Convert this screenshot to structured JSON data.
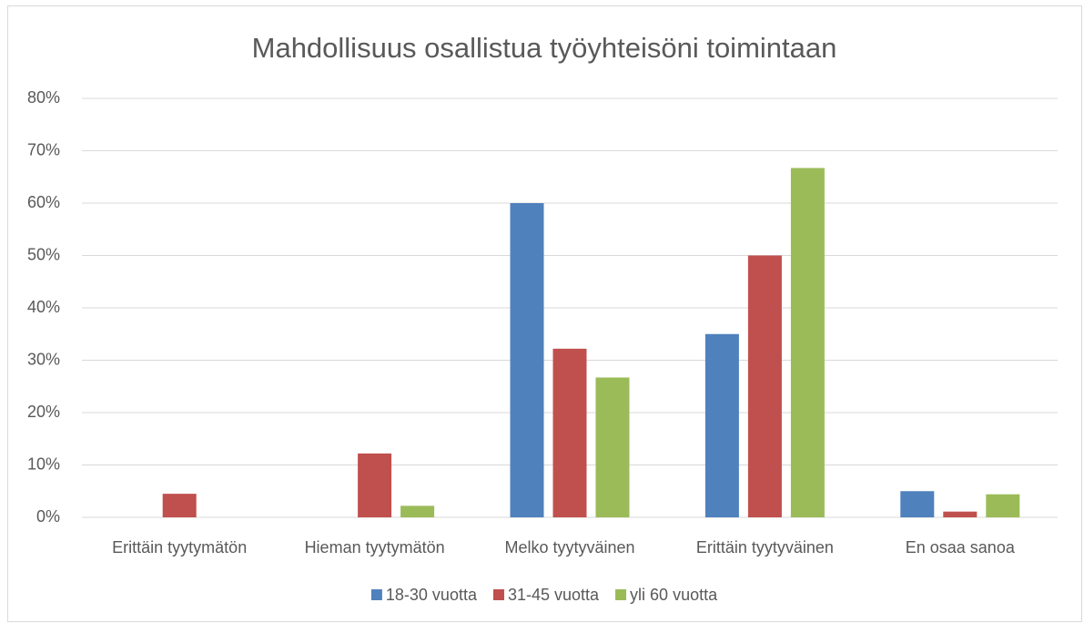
{
  "chart_data": {
    "type": "bar",
    "title": "Mahdollisuus osallistua työyhteisöni toimintaan",
    "categories": [
      "Erittäin tyytymätön",
      "Hieman tyytymätön",
      "Melko tyytyväinen",
      "Erittäin tyytyväinen",
      "En osaa sanoa"
    ],
    "series": [
      {
        "name": "18-30 vuotta",
        "color": "#4f81bd",
        "values": [
          0,
          0,
          60,
          35,
          5
        ]
      },
      {
        "name": "31-45 vuotta",
        "color": "#c0504d",
        "values": [
          4.5,
          12.2,
          32.2,
          50,
          1.1
        ]
      },
      {
        "name": "yli 60 vuotta",
        "color": "#9bbb59",
        "values": [
          0,
          2.2,
          26.7,
          66.7,
          4.4
        ]
      }
    ],
    "ylim": [
      0,
      80
    ],
    "yticks": [
      {
        "value": 0,
        "label": "0%"
      },
      {
        "value": 10,
        "label": "10%"
      },
      {
        "value": 20,
        "label": "20%"
      },
      {
        "value": 30,
        "label": "30%"
      },
      {
        "value": 40,
        "label": "40%"
      },
      {
        "value": 50,
        "label": "50%"
      },
      {
        "value": 60,
        "label": "60%"
      },
      {
        "value": 70,
        "label": "70%"
      },
      {
        "value": 80,
        "label": "80%"
      }
    ],
    "grid": true,
    "legend": "bottom"
  }
}
